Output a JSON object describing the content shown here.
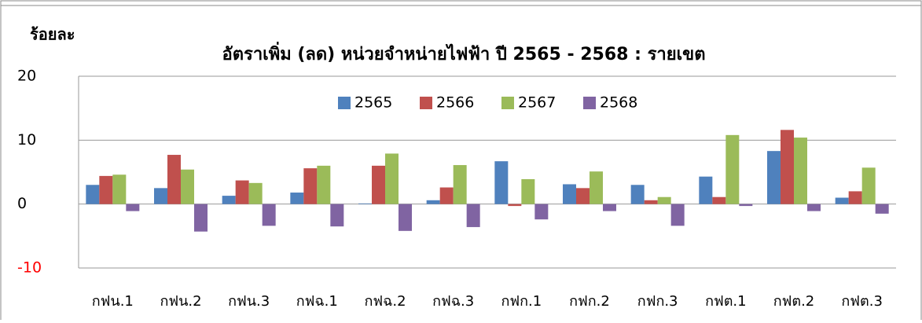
{
  "chart_data": {
    "type": "bar",
    "title": "อัตราเพิ่ม (ลด) หน่วยจำหน่ายไฟฟ้า ปี 2565 - 2568 : รายเขต",
    "y_label": "ร้อยละ",
    "categories": [
      "กฟน.1",
      "กฟน.2",
      "กฟน.3",
      "กฟฉ.1",
      "กฟฉ.2",
      "กฟฉ.3",
      "กฟก.1",
      "กฟก.2",
      "กฟก.3",
      "กฟต.1",
      "กฟต.2",
      "กฟต.3"
    ],
    "series": [
      {
        "name": "2565",
        "color": "#4f81bd",
        "values": [
          3.0,
          2.5,
          1.3,
          1.8,
          0.1,
          0.6,
          6.7,
          3.1,
          3.0,
          4.3,
          8.3,
          1.0
        ]
      },
      {
        "name": "2566",
        "color": "#c0504d",
        "values": [
          4.4,
          7.7,
          3.7,
          5.6,
          6.0,
          2.6,
          -0.3,
          2.5,
          0.6,
          1.1,
          11.6,
          2.0
        ]
      },
      {
        "name": "2567",
        "color": "#9bbb59",
        "values": [
          4.6,
          5.4,
          3.3,
          6.0,
          7.9,
          6.1,
          3.9,
          5.1,
          1.1,
          10.8,
          10.4,
          5.7
        ]
      },
      {
        "name": "2568",
        "color": "#8064a2",
        "values": [
          -1.1,
          -4.3,
          -3.4,
          -3.5,
          -4.2,
          -3.6,
          -2.4,
          -1.1,
          -3.4,
          -0.3,
          -1.1,
          -1.5
        ]
      }
    ],
    "ylim": [
      -10,
      20
    ],
    "yticks": [
      -10,
      0,
      10,
      20
    ],
    "negative_tick_color": "#ff0000",
    "grid": true,
    "legend": "top"
  }
}
